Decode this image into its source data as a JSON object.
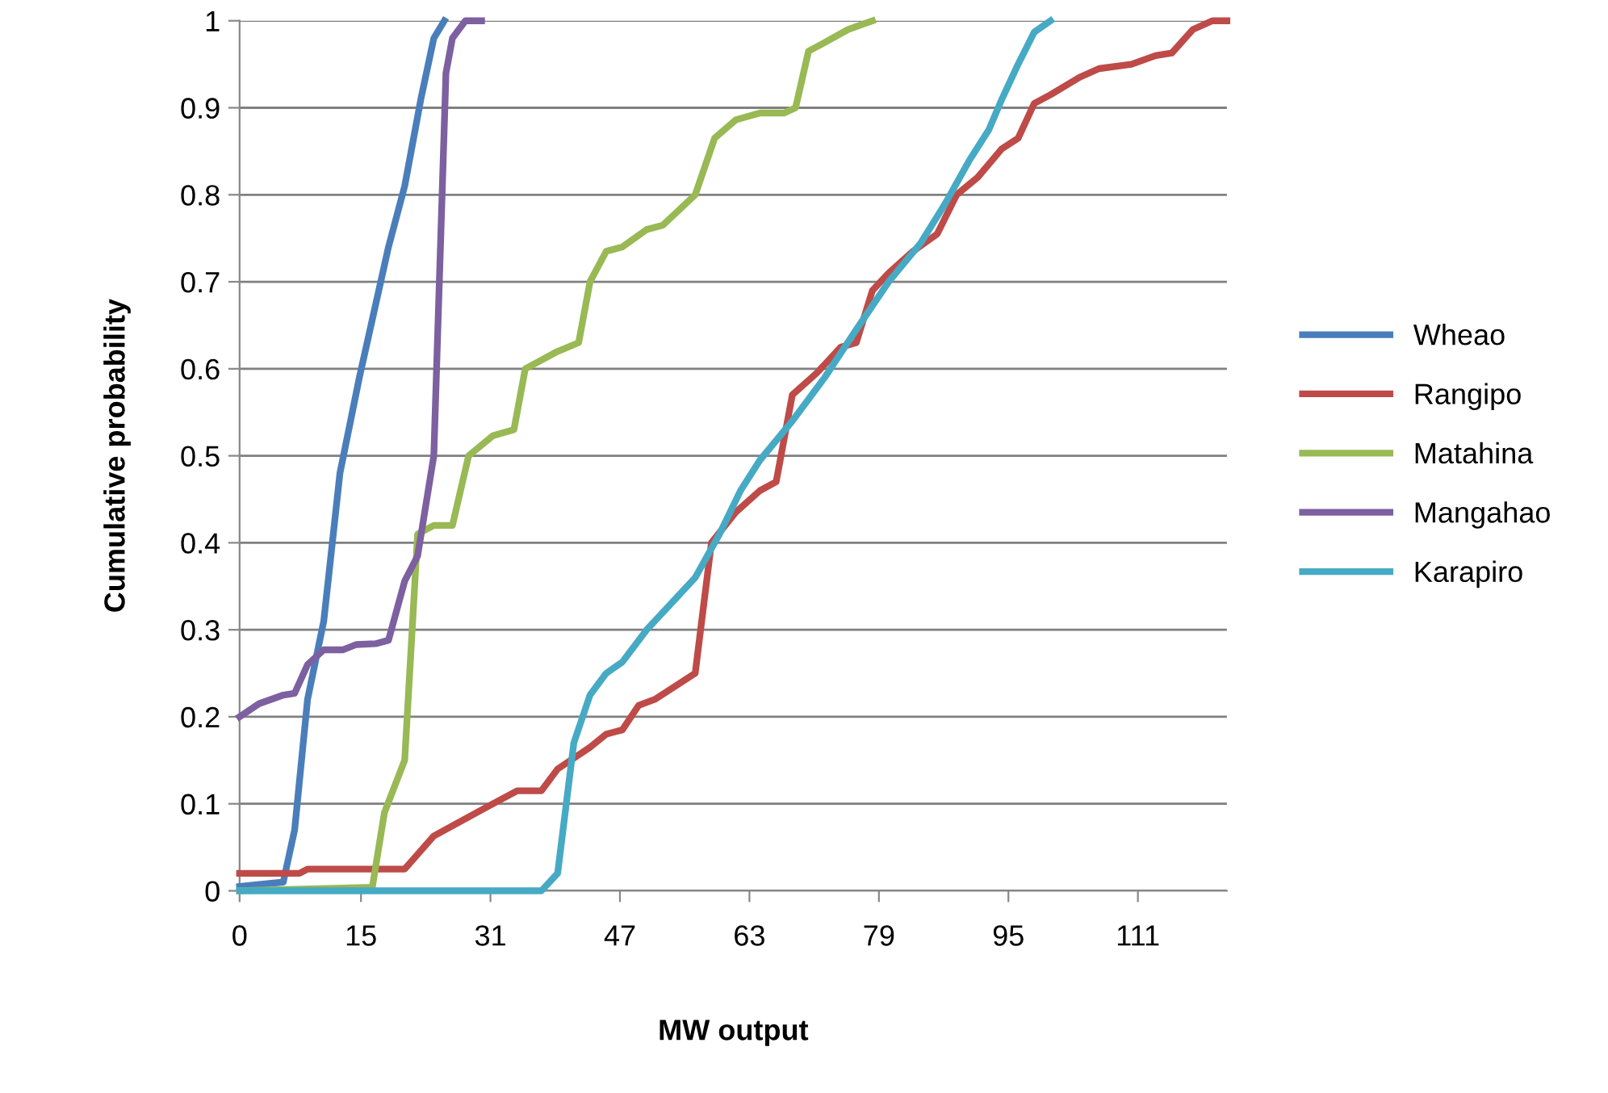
{
  "chart_data": {
    "type": "line",
    "xlabel": "MW output",
    "ylabel": "Cumulative probability",
    "xlim": [
      0,
      122
    ],
    "xticks": [
      0,
      15,
      31,
      47,
      63,
      79,
      95,
      111
    ],
    "ylim": [
      0,
      1
    ],
    "yticks": [
      0,
      0.1,
      0.2,
      0.3,
      0.4,
      0.5,
      0.6,
      0.7,
      0.8,
      0.9,
      1
    ],
    "grid": "y",
    "legend": "right",
    "marker": "none",
    "line_style": "solid",
    "series": [
      {
        "name": "Wheao",
        "color": "#4a7ebb",
        "x": [
          0,
          5.4,
          6.8,
          8.4,
          10.4,
          12.4,
          14.8,
          18.4,
          20.4,
          22.4,
          24,
          25.3
        ],
        "values": [
          0.005,
          0.01,
          0.07,
          0.22,
          0.31,
          0.48,
          0.59,
          0.74,
          0.81,
          0.91,
          0.98,
          1.0
        ]
      },
      {
        "name": "Rangipo",
        "color": "#be4b48",
        "x": [
          0,
          7.4,
          8.4,
          20.4,
          24,
          30.3,
          34.3,
          37.3,
          39.3,
          43.3,
          45.3,
          47.3,
          49.3,
          51.3,
          56.3,
          58.3,
          61.3,
          64.3,
          66.3,
          68.3,
          71.3,
          74.3,
          76.2,
          78.2,
          80.2,
          83.2,
          86.2,
          88.6,
          91.2,
          94.2,
          96.2,
          98.2,
          100.2,
          103.8,
          106.2,
          110.2,
          113.2,
          115.2,
          117.8,
          120.2,
          122
        ],
        "values": [
          0.02,
          0.02,
          0.025,
          0.025,
          0.063,
          0.095,
          0.115,
          0.115,
          0.14,
          0.165,
          0.18,
          0.185,
          0.213,
          0.22,
          0.25,
          0.4,
          0.435,
          0.46,
          0.47,
          0.57,
          0.595,
          0.625,
          0.63,
          0.69,
          0.71,
          0.735,
          0.755,
          0.8,
          0.82,
          0.853,
          0.865,
          0.905,
          0.915,
          0.935,
          0.945,
          0.95,
          0.96,
          0.963,
          0.99,
          1.0,
          1.0
        ]
      },
      {
        "name": "Matahina",
        "color": "#98b954",
        "x": [
          0,
          16.4,
          17.9,
          20.4,
          22,
          24,
          26.3,
          28.3,
          31.3,
          33.9,
          35.3,
          39.3,
          41.9,
          43.3,
          45.3,
          47.3,
          50.3,
          52.3,
          56.3,
          58.7,
          61.3,
          64.3,
          67.3,
          68.7,
          70.3,
          72.3,
          75.2,
          78.2
        ],
        "values": [
          0,
          0.004,
          0.09,
          0.15,
          0.41,
          0.42,
          0.42,
          0.5,
          0.523,
          0.53,
          0.6,
          0.62,
          0.63,
          0.7,
          0.735,
          0.74,
          0.76,
          0.765,
          0.8,
          0.865,
          0.886,
          0.894,
          0.894,
          0.9,
          0.965,
          0.975,
          0.99,
          1.0
        ]
      },
      {
        "name": "Mangahao",
        "color": "#7d60a0",
        "x": [
          0,
          2.4,
          5.4,
          6.8,
          8.4,
          10.4,
          12.8,
          14.4,
          16.8,
          18.4,
          20.4,
          22,
          24,
          25.5,
          26.3,
          27.9,
          29.9
        ],
        "values": [
          0.2,
          0.215,
          0.225,
          0.227,
          0.26,
          0.277,
          0.277,
          0.283,
          0.284,
          0.288,
          0.356,
          0.385,
          0.5,
          0.94,
          0.98,
          1.0,
          1.0
        ]
      },
      {
        "name": "Karapiro",
        "color": "#46aac5",
        "x": [
          0,
          37.3,
          39.3,
          41.3,
          43.3,
          45.3,
          47.3,
          50.3,
          53.3,
          56.3,
          59.3,
          61.9,
          64.3,
          68.3,
          72.3,
          76.2,
          80.2,
          84.2,
          87.2,
          90.2,
          92.6,
          94.2,
          96.2,
          98.2,
          100.2
        ],
        "values": [
          0,
          0,
          0.02,
          0.17,
          0.225,
          0.25,
          0.263,
          0.3,
          0.33,
          0.36,
          0.41,
          0.46,
          0.495,
          0.54,
          0.59,
          0.645,
          0.7,
          0.745,
          0.79,
          0.84,
          0.875,
          0.91,
          0.95,
          0.987,
          1.0
        ]
      }
    ]
  }
}
